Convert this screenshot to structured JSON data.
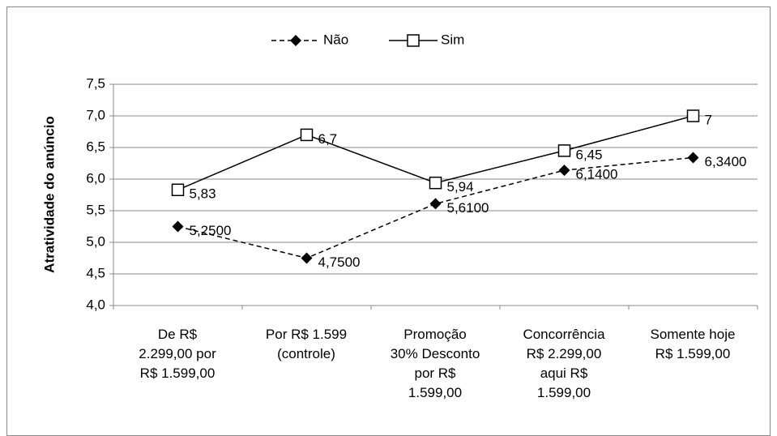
{
  "chart_data": {
    "type": "line",
    "y_label": "Atratividade do anúncio",
    "categories": [
      "De R$\n2.299,00 por\nR$ 1.599,00",
      "Por R$ 1.599\n(controle)",
      "Promoção\n30% Desconto\npor R$\n1.599,00",
      "Concorrência\nR$ 2.299,00\naqui R$\n1.599,00",
      "Somente hoje\nR$ 1.599,00"
    ],
    "series": [
      {
        "name": "Não",
        "color": "#000000",
        "dashed": true,
        "marker": "diamond",
        "values": [
          5.25,
          4.75,
          5.61,
          6.14,
          6.34
        ],
        "value_labels": [
          "5,2500",
          "4,7500",
          "5,6100",
          "6,1400",
          "6,3400"
        ]
      },
      {
        "name": "Sim",
        "color": "#000000",
        "dashed": false,
        "marker": "square",
        "values": [
          5.83,
          6.7,
          5.94,
          6.45,
          7
        ],
        "value_labels": [
          "5,83",
          "6,7",
          "5,94",
          "6,45",
          "7"
        ]
      }
    ],
    "ylim": [
      4.0,
      7.5
    ],
    "yticks": [
      {
        "value": 4.0,
        "label": "4,0"
      },
      {
        "value": 4.5,
        "label": "4,5"
      },
      {
        "value": 5.0,
        "label": "5,0"
      },
      {
        "value": 5.5,
        "label": "5,5"
      },
      {
        "value": 6.0,
        "label": "6,0"
      },
      {
        "value": 6.5,
        "label": "6,5"
      },
      {
        "value": 7.0,
        "label": "7,0"
      },
      {
        "value": 7.5,
        "label": "7,5"
      }
    ],
    "grid": true,
    "legend": "top"
  }
}
